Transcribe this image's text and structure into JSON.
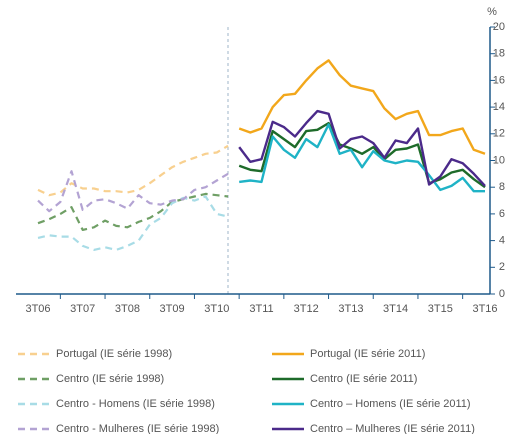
{
  "chart_data": {
    "type": "line",
    "y_label": "%",
    "categories": [
      "3T06",
      null,
      null,
      null,
      "3T07",
      null,
      null,
      null,
      "3T08",
      null,
      null,
      null,
      "3T09",
      null,
      null,
      null,
      "3T10",
      null,
      null,
      null,
      "3T11",
      null,
      null,
      null,
      "3T12",
      null,
      null,
      null,
      "3T13",
      null,
      null,
      null,
      "3T14",
      null,
      null,
      null,
      "3T15",
      null,
      null,
      null,
      "3T16"
    ],
    "ylim": [
      0,
      20
    ],
    "yticks": [
      0,
      2,
      4,
      6,
      8,
      10,
      12,
      14,
      16,
      18,
      20
    ],
    "grid": false,
    "series": [
      {
        "name": "Portugal (IE série 1998)",
        "color": "#f8d08f",
        "style": "dashed",
        "values": [
          7.8,
          7.4,
          7.6,
          8.3,
          7.9,
          7.9,
          7.7,
          7.7,
          7.6,
          7.8,
          8.3,
          8.9,
          9.5,
          9.9,
          10.2,
          10.5,
          10.6,
          11.1,
          null,
          null,
          null,
          null,
          null,
          null,
          null,
          null,
          null,
          null,
          null,
          null,
          null,
          null,
          null,
          null,
          null,
          null,
          null,
          null,
          null,
          null,
          null
        ]
      },
      {
        "name": "Centro (IE série 1998)",
        "color": "#6f9f65",
        "style": "dashed",
        "values": [
          5.3,
          5.6,
          6.0,
          6.5,
          4.8,
          5.0,
          5.5,
          5.1,
          5.0,
          5.4,
          5.7,
          6.2,
          6.9,
          7.1,
          7.3,
          7.5,
          7.4,
          7.3,
          null,
          null,
          null,
          null,
          null,
          null,
          null,
          null,
          null,
          null,
          null,
          null,
          null,
          null,
          null,
          null,
          null,
          null,
          null,
          null,
          null,
          null,
          null
        ]
      },
      {
        "name": "Centro - Homens (IE série 1998)",
        "color": "#a8dce6",
        "style": "dashed",
        "values": [
          4.2,
          4.4,
          4.3,
          4.3,
          3.6,
          3.3,
          3.5,
          3.3,
          3.6,
          4.0,
          5.2,
          5.7,
          6.8,
          7.2,
          7.0,
          7.3,
          6.0,
          5.8,
          null,
          null,
          null,
          null,
          null,
          null,
          null,
          null,
          null,
          null,
          null,
          null,
          null,
          null,
          null,
          null,
          null,
          null,
          null,
          null,
          null,
          null,
          null
        ]
      },
      {
        "name": "Centro - Mulheres (IE série 1998)",
        "color": "#b3a3d3",
        "style": "dashed",
        "values": [
          7.0,
          6.2,
          6.9,
          9.2,
          6.3,
          7.0,
          7.1,
          6.8,
          6.4,
          7.4,
          6.8,
          6.7,
          7.0,
          7.1,
          7.8,
          8.0,
          8.5,
          9.0,
          null,
          null,
          null,
          null,
          null,
          null,
          null,
          null,
          null,
          null,
          null,
          null,
          null,
          null,
          null,
          null,
          null,
          null,
          null,
          null,
          null,
          null,
          null
        ]
      },
      {
        "name": "Portugal (IE série 2011)",
        "color": "#f2a71b",
        "style": "solid",
        "values": [
          null,
          null,
          null,
          null,
          null,
          null,
          null,
          null,
          null,
          null,
          null,
          null,
          null,
          null,
          null,
          null,
          null,
          null,
          12.4,
          12.1,
          12.4,
          14.0,
          14.9,
          15.0,
          16.0,
          16.9,
          17.5,
          16.4,
          15.6,
          15.4,
          15.2,
          13.9,
          13.1,
          13.5,
          13.7,
          11.9,
          11.9,
          12.2,
          12.4,
          10.8,
          10.5
        ]
      },
      {
        "name": "Centro (IE série 2011)",
        "color": "#1e6b2a",
        "style": "solid",
        "values": [
          null,
          null,
          null,
          null,
          null,
          null,
          null,
          null,
          null,
          null,
          null,
          null,
          null,
          null,
          null,
          null,
          null,
          null,
          9.6,
          9.3,
          9.2,
          12.2,
          11.6,
          11.0,
          12.2,
          12.3,
          12.8,
          11.2,
          10.9,
          10.5,
          11.0,
          10.1,
          10.8,
          10.9,
          11.2,
          8.3,
          8.6,
          9.1,
          9.3,
          8.6,
          8.0
        ]
      },
      {
        "name": "Centro – Homens (IE série 2011)",
        "color": "#1fb3c6",
        "style": "solid",
        "values": [
          null,
          null,
          null,
          null,
          null,
          null,
          null,
          null,
          null,
          null,
          null,
          null,
          null,
          null,
          null,
          null,
          null,
          null,
          8.4,
          8.5,
          8.4,
          11.8,
          10.8,
          10.2,
          11.6,
          11.0,
          12.7,
          10.5,
          10.8,
          9.5,
          10.7,
          10.0,
          9.8,
          10.0,
          9.9,
          8.9,
          7.8,
          8.1,
          8.7,
          7.7,
          7.7
        ]
      },
      {
        "name": "Centro – Mulheres (IE série 2011)",
        "color": "#4b2a8a",
        "style": "solid",
        "values": [
          null,
          null,
          null,
          null,
          null,
          null,
          null,
          null,
          null,
          null,
          null,
          null,
          null,
          null,
          null,
          null,
          null,
          null,
          11.0,
          9.9,
          10.1,
          12.9,
          12.5,
          11.8,
          12.8,
          13.7,
          13.5,
          10.9,
          11.6,
          11.8,
          11.3,
          10.2,
          11.5,
          11.3,
          12.4,
          8.2,
          8.8,
          10.1,
          9.8,
          9.0,
          8.1
        ]
      }
    ]
  }
}
